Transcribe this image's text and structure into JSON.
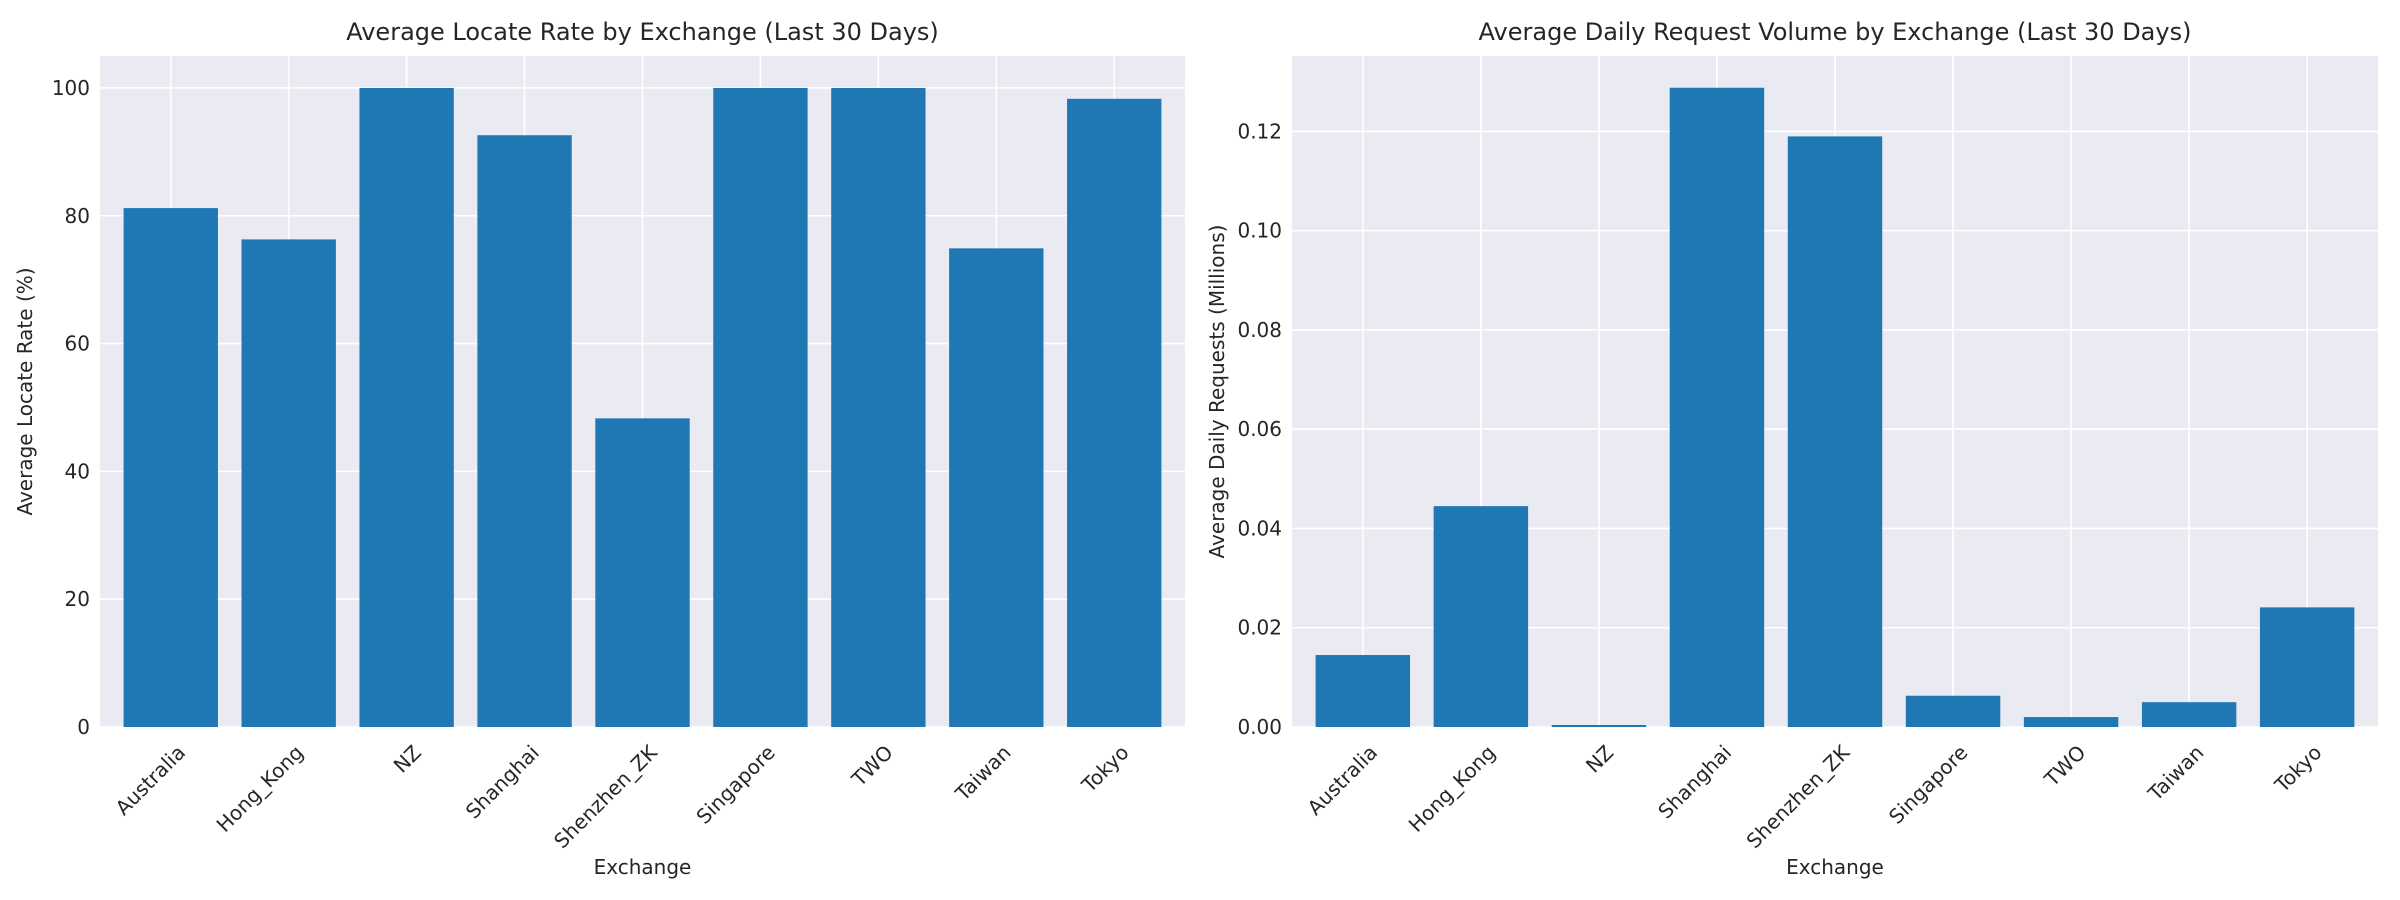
{
  "chart_data": [
    {
      "type": "bar",
      "title": "Average Locate Rate by Exchange (Last 30 Days)",
      "xlabel": "Exchange",
      "ylabel": "Average Locate Rate (%)",
      "categories": [
        "Australia",
        "Hong_Kong",
        "NZ",
        "Shanghai",
        "Shenzhen_ZK",
        "Singapore",
        "TWO",
        "Taiwan",
        "Tokyo"
      ],
      "values": [
        81.2,
        76.3,
        100.0,
        92.6,
        48.3,
        100.0,
        100.0,
        74.9,
        98.3
      ],
      "ylim": [
        0,
        105
      ],
      "yticks": [
        0,
        20,
        40,
        60,
        80,
        100
      ],
      "ytick_labels": [
        "0",
        "20",
        "40",
        "60",
        "80",
        "100"
      ],
      "grid": true,
      "color": "#1f77b4"
    },
    {
      "type": "bar",
      "title": "Average Daily Request Volume by Exchange (Last 30 Days)",
      "xlabel": "Exchange",
      "ylabel": "Average Daily Requests (Millions)",
      "categories": [
        "Australia",
        "Hong_Kong",
        "NZ",
        "Shanghai",
        "Shenzhen_ZK",
        "Singapore",
        "TWO",
        "Taiwan",
        "Tokyo"
      ],
      "values": [
        0.0145,
        0.0445,
        0.0004,
        0.1288,
        0.119,
        0.0063,
        0.002,
        0.005,
        0.0241
      ],
      "ylim": [
        0,
        0.1352
      ],
      "yticks": [
        0,
        0.02,
        0.04,
        0.06,
        0.08,
        0.1,
        0.12
      ],
      "ytick_labels": [
        "0.00",
        "0.02",
        "0.04",
        "0.06",
        "0.08",
        "0.10",
        "0.12"
      ],
      "grid": true,
      "color": "#1f77b4"
    }
  ]
}
